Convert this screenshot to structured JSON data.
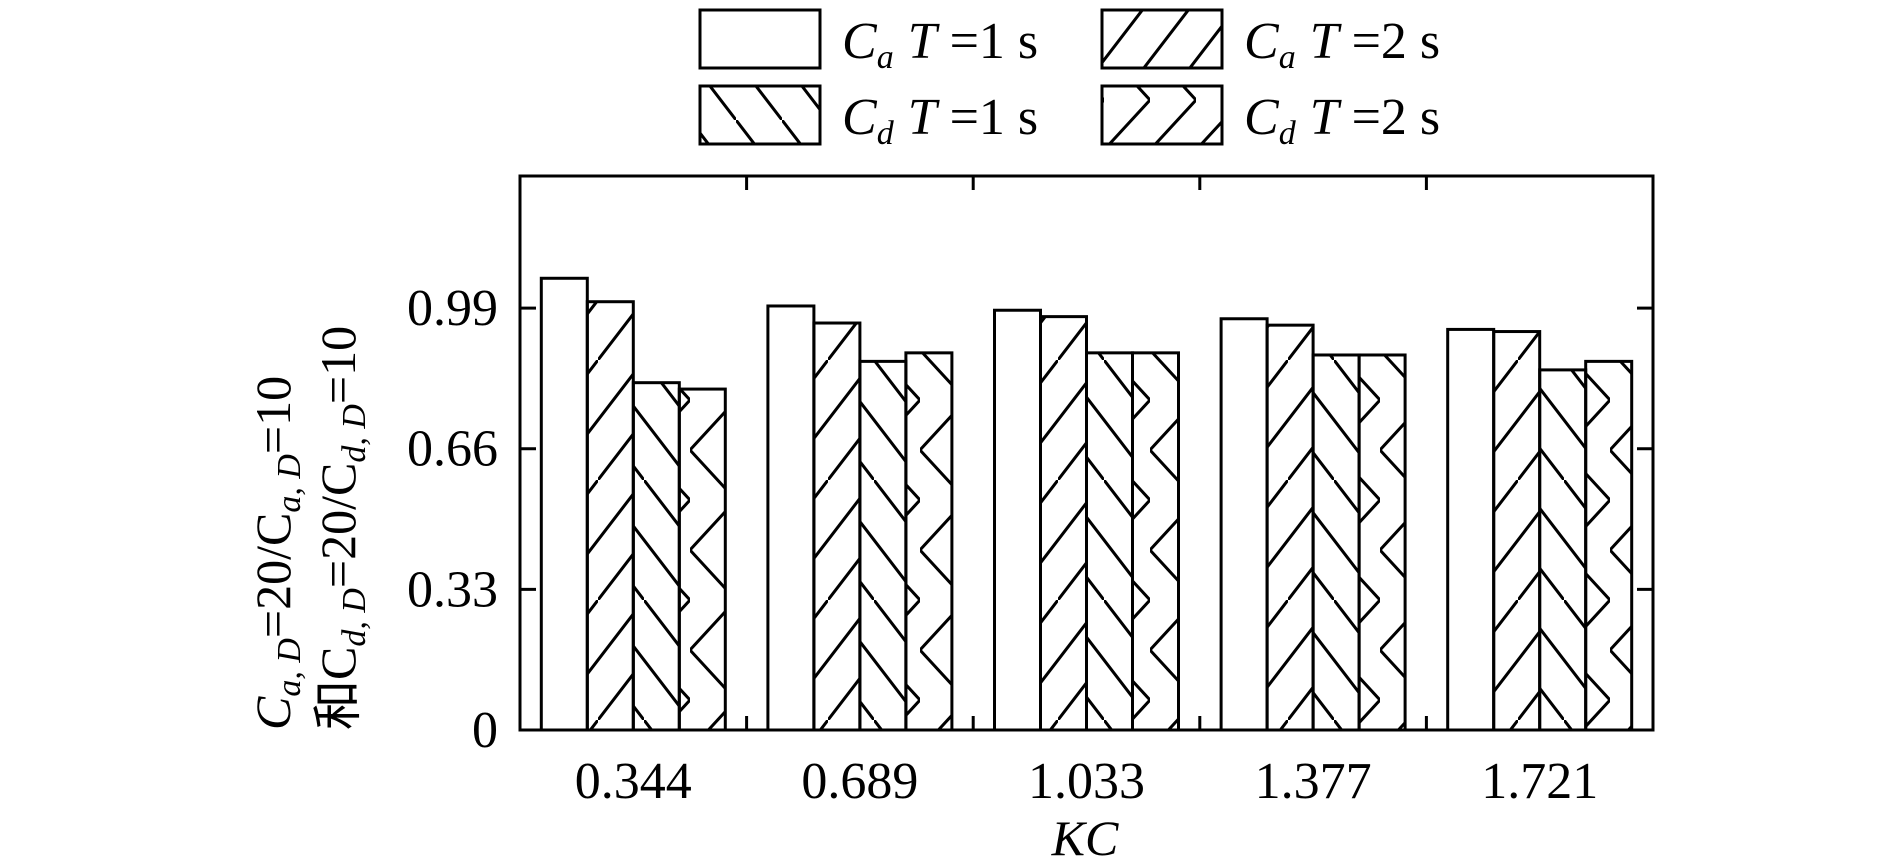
{
  "chart_data": {
    "type": "bar",
    "categories": [
      "0.344",
      "0.689",
      "1.033",
      "1.377",
      "1.721"
    ],
    "series": [
      {
        "name_parts": [
          "C",
          "a",
          "T =1 s"
        ],
        "pattern": "none",
        "values": [
          1.06,
          0.995,
          0.985,
          0.965,
          0.94
        ]
      },
      {
        "name_parts": [
          "C",
          "a",
          "T =2 s"
        ],
        "pattern": "slash",
        "values": [
          1.005,
          0.955,
          0.97,
          0.95,
          0.935
        ]
      },
      {
        "name_parts": [
          "C",
          "d",
          "T =1 s"
        ],
        "pattern": "backslash",
        "values": [
          0.815,
          0.865,
          0.885,
          0.88,
          0.845
        ]
      },
      {
        "name_parts": [
          "C",
          "d",
          "T =2 s"
        ],
        "pattern": "chevron",
        "values": [
          0.8,
          0.885,
          0.885,
          0.88,
          0.865
        ]
      }
    ],
    "xlabel": "KC",
    "ylabel_line1": "C",
    "ylabel_line1_sub1": "a, D",
    "ylabel_line1_mid": "=20/C",
    "ylabel_line1_sub2": "a, D",
    "ylabel_line1_end": "=10",
    "ylabel_line2_pre": "和C",
    "ylabel_line2_sub1": "d, D",
    "ylabel_line2_mid": "=20/C",
    "ylabel_line2_sub2": "d, D",
    "ylabel_line2_end": "=10",
    "yticks": [
      "0",
      "0.33",
      "0.66",
      "0.99"
    ],
    "ytick_values": [
      0,
      0.33,
      0.66,
      0.99
    ],
    "ylim": [
      0,
      1.3
    ],
    "legend_position": "top",
    "grid": false
  }
}
